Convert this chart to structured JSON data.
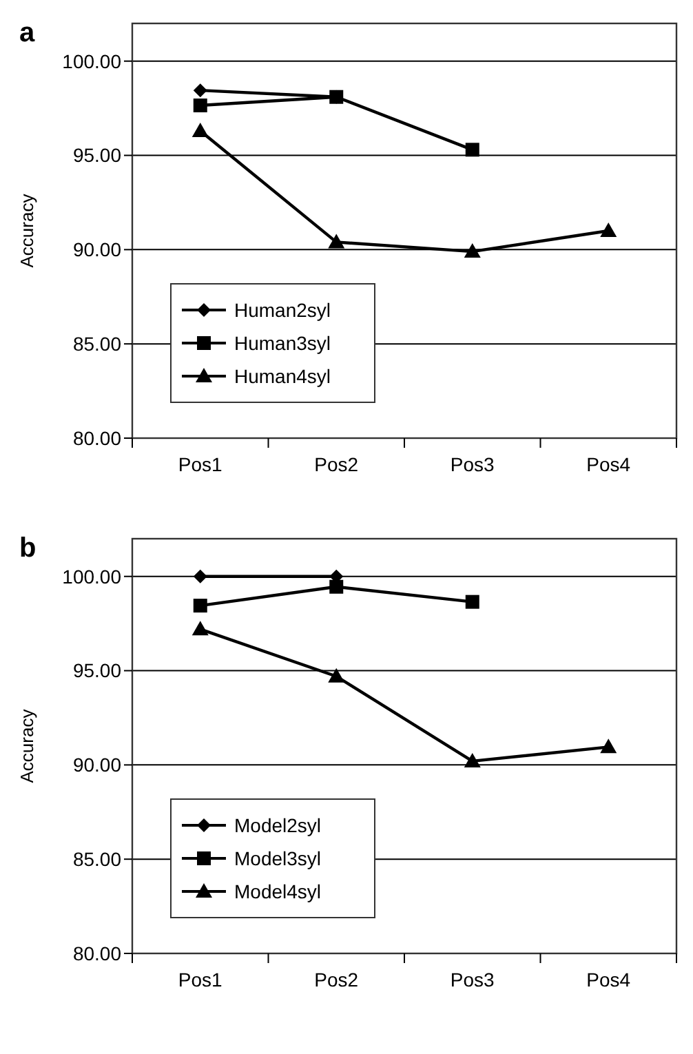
{
  "chart_data": [
    {
      "type": "line",
      "title": "a",
      "ylabel": "Accuracy",
      "categories": [
        "Pos1",
        "Pos2",
        "Pos3",
        "Pos4"
      ],
      "series": [
        {
          "name": "Human2syl",
          "color": "#000000",
          "marker": "diamond",
          "values": [
            98.45,
            98.1,
            null,
            null
          ]
        },
        {
          "name": "Human3syl",
          "color": "#000000",
          "marker": "square",
          "values": [
            97.65,
            98.1,
            95.3,
            null
          ]
        },
        {
          "name": "Human4syl",
          "color": "#000000",
          "marker": "triangle",
          "values": [
            96.3,
            90.4,
            89.9,
            91.0
          ]
        }
      ],
      "ylim": [
        80,
        102
      ],
      "yticks": [
        {
          "value": 80,
          "label": "80.00"
        },
        {
          "value": 85,
          "label": "85.00"
        },
        {
          "value": 90,
          "label": "90.00"
        },
        {
          "value": 95,
          "label": "95.00"
        },
        {
          "value": 100,
          "label": "100.00"
        }
      ],
      "grid": "y",
      "legend": "bottom left"
    },
    {
      "type": "line",
      "title": "b",
      "ylabel": "Accuracy",
      "categories": [
        "Pos1",
        "Pos2",
        "Pos3",
        "Pos4"
      ],
      "series": [
        {
          "name": "Model2syl",
          "color": "#000000",
          "marker": "diamond",
          "values": [
            100,
            100,
            null,
            null
          ]
        },
        {
          "name": "Model3syl",
          "color": "#000000",
          "marker": "square",
          "values": [
            98.45,
            99.45,
            98.65,
            null
          ]
        },
        {
          "name": "Model4syl",
          "color": "#000000",
          "marker": "triangle",
          "values": [
            97.2,
            94.7,
            90.2,
            90.95
          ]
        }
      ],
      "ylim": [
        80,
        102
      ],
      "yticks": [
        {
          "value": 80,
          "label": "80.00"
        },
        {
          "value": 85,
          "label": "85.00"
        },
        {
          "value": 90,
          "label": "90.00"
        },
        {
          "value": 95,
          "label": "95.00"
        },
        {
          "value": 100,
          "label": "100.00"
        }
      ],
      "grid": "y",
      "legend": "bottom left"
    }
  ]
}
